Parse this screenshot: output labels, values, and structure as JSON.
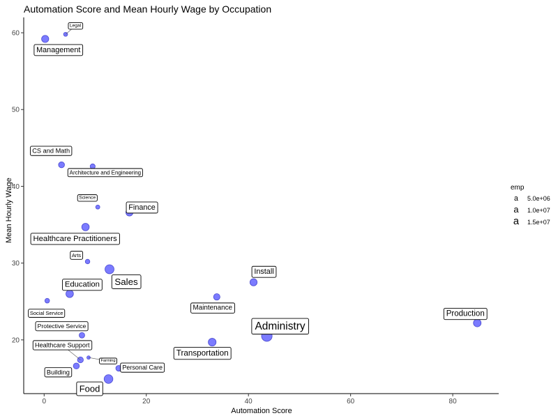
{
  "chart_data": {
    "type": "scatter",
    "title": "Automation Score and Mean Hourly Wage by Occupation",
    "xlabel": "Automation Score",
    "ylabel": "Mean Hourly Wage",
    "xlim": [
      -4,
      89
    ],
    "ylim": [
      13,
      62
    ],
    "xticks": [
      0,
      20,
      40,
      60,
      80
    ],
    "yticks": [
      20,
      30,
      40,
      50,
      60
    ],
    "grid": false,
    "legend": {
      "title": "emp",
      "placement": "right",
      "entries": [
        {
          "label": "5.0e+06",
          "glyph": "a",
          "emp": 5000000
        },
        {
          "label": "1.0e+07",
          "glyph": "a",
          "emp": 10000000
        },
        {
          "label": "1.5e+07",
          "glyph": "a",
          "emp": 15000000
        }
      ]
    },
    "point_color": "#7b7bff",
    "point_stroke": "#4a4ad0",
    "points": [
      {
        "label": "Management",
        "x": 0.2,
        "y": 59.2,
        "emp": 7500000
      },
      {
        "label": "Legal",
        "x": 4.2,
        "y": 59.8,
        "emp": 1100000
      },
      {
        "label": "CS and Math",
        "x": 3.4,
        "y": 42.8,
        "emp": 4400000
      },
      {
        "label": "Architecture and Engineering",
        "x": 9.5,
        "y": 42.6,
        "emp": 2500000
      },
      {
        "label": "Science",
        "x": 10.5,
        "y": 37.3,
        "emp": 1200000
      },
      {
        "label": "Finance",
        "x": 16.7,
        "y": 36.6,
        "emp": 7500000
      },
      {
        "label": "Healthcare Practitioners",
        "x": 8.1,
        "y": 34.7,
        "emp": 8500000
      },
      {
        "label": "Arts",
        "x": 8.5,
        "y": 30.2,
        "emp": 1800000
      },
      {
        "label": "Sales",
        "x": 12.8,
        "y": 29.2,
        "emp": 14000000
      },
      {
        "label": "Education",
        "x": 5.0,
        "y": 26.0,
        "emp": 8500000
      },
      {
        "label": "Social Service",
        "x": 0.6,
        "y": 25.1,
        "emp": 2000000
      },
      {
        "label": "Maintenance",
        "x": 33.8,
        "y": 25.6,
        "emp": 5500000
      },
      {
        "label": "Install",
        "x": 41.0,
        "y": 27.5,
        "emp": 7500000
      },
      {
        "label": "Production",
        "x": 84.8,
        "y": 22.2,
        "emp": 9000000
      },
      {
        "label": "Administry",
        "x": 43.6,
        "y": 20.5,
        "emp": 21000000
      },
      {
        "label": "Transportation",
        "x": 32.9,
        "y": 19.7,
        "emp": 9500000
      },
      {
        "label": "Protective Service",
        "x": 7.4,
        "y": 20.6,
        "emp": 3500000
      },
      {
        "label": "Healthcare Support",
        "x": 7.1,
        "y": 17.4,
        "emp": 4200000
      },
      {
        "label": "Farming",
        "x": 8.7,
        "y": 17.7,
        "emp": 500000
      },
      {
        "label": "Building",
        "x": 6.3,
        "y": 16.6,
        "emp": 4500000
      },
      {
        "label": "Personal Care",
        "x": 14.6,
        "y": 16.3,
        "emp": 4000000
      },
      {
        "label": "Food",
        "x": 12.6,
        "y": 14.9,
        "emp": 13000000
      }
    ]
  }
}
